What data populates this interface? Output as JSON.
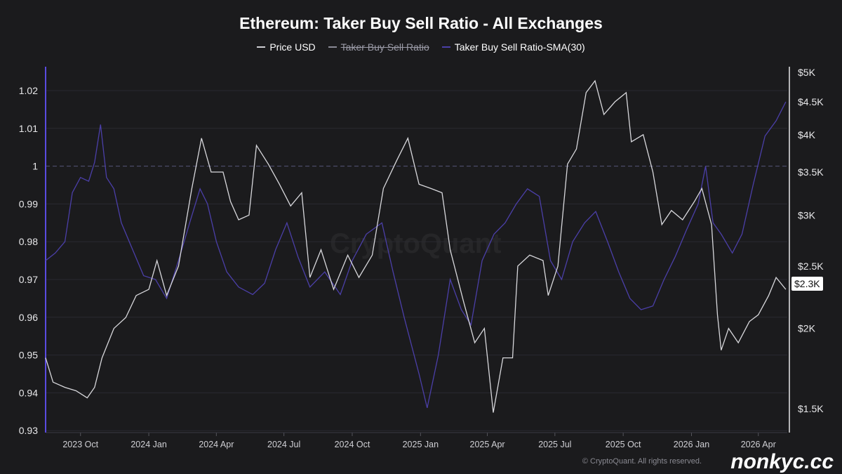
{
  "chart_data": {
    "type": "line",
    "title": "Ethereum: Taker Buy Sell Ratio - All Exchanges",
    "legend": [
      {
        "name": "Price USD",
        "color": "#cfcfd4",
        "hidden": false
      },
      {
        "name": "Taker Buy Sell Ratio",
        "color": "#8a8a96",
        "hidden": true
      },
      {
        "name": "Taker Buy Sell Ratio-SMA(30)",
        "color": "#4b3fa8",
        "hidden": false
      }
    ],
    "legend_position": "top-center",
    "left_axis": {
      "ylim": [
        0.93,
        1.025
      ],
      "ticks": [
        "1.02",
        "1.01",
        "1",
        "0.99",
        "0.98",
        "0.97",
        "0.96",
        "0.95",
        "0.94",
        "0.93"
      ],
      "tick_values": [
        1.02,
        1.01,
        1,
        0.99,
        0.98,
        0.97,
        0.96,
        0.95,
        0.94,
        0.93
      ],
      "reference_line": 1
    },
    "right_axis": {
      "scale": "log",
      "ylim": [
        1400,
        5050
      ],
      "ticks": [
        "$5K",
        "$4.5K",
        "$4K",
        "$3.5K",
        "$3K",
        "$2.5K",
        "$2K",
        "$1.5K"
      ],
      "tick_values": [
        5000,
        4500,
        4000,
        3500,
        3000,
        2500,
        2000,
        1500
      ],
      "current_label": "$2.3K",
      "current_value": 2300
    },
    "x_axis": {
      "range": [
        "2023-08-15",
        "2026-05-10"
      ],
      "ticks": [
        "2023 Oct",
        "2024 Jan",
        "2024 Apr",
        "2024 Jul",
        "2024 Oct",
        "2025 Jan",
        "2025 Apr",
        "2025 Jul",
        "2025 Oct",
        "2026 Jan",
        "2026 Apr"
      ],
      "tick_dates": [
        "2023-10-01",
        "2024-01-01",
        "2024-04-01",
        "2024-07-01",
        "2024-10-01",
        "2025-01-01",
        "2025-04-01",
        "2025-07-01",
        "2025-10-01",
        "2026-01-01",
        "2026-04-01"
      ]
    },
    "grid": true,
    "series": [
      {
        "name": "Price USD",
        "axis": "right",
        "points": [
          [
            "2023-08-15",
            1800
          ],
          [
            "2023-08-25",
            1650
          ],
          [
            "2023-09-10",
            1620
          ],
          [
            "2023-09-25",
            1600
          ],
          [
            "2023-10-10",
            1560
          ],
          [
            "2023-10-20",
            1620
          ],
          [
            "2023-10-30",
            1800
          ],
          [
            "2023-11-15",
            2000
          ],
          [
            "2023-12-01",
            2080
          ],
          [
            "2023-12-15",
            2250
          ],
          [
            "2024-01-01",
            2300
          ],
          [
            "2024-01-12",
            2550
          ],
          [
            "2024-01-25",
            2250
          ],
          [
            "2024-02-10",
            2500
          ],
          [
            "2024-02-28",
            3300
          ],
          [
            "2024-03-12",
            3950
          ],
          [
            "2024-03-25",
            3500
          ],
          [
            "2024-04-10",
            3500
          ],
          [
            "2024-04-20",
            3150
          ],
          [
            "2024-05-01",
            2950
          ],
          [
            "2024-05-15",
            3000
          ],
          [
            "2024-05-25",
            3850
          ],
          [
            "2024-06-10",
            3600
          ],
          [
            "2024-06-25",
            3350
          ],
          [
            "2024-07-10",
            3100
          ],
          [
            "2024-07-25",
            3250
          ],
          [
            "2024-08-05",
            2400
          ],
          [
            "2024-08-20",
            2650
          ],
          [
            "2024-09-06",
            2300
          ],
          [
            "2024-09-25",
            2600
          ],
          [
            "2024-10-10",
            2400
          ],
          [
            "2024-10-28",
            2600
          ],
          [
            "2024-11-12",
            3300
          ],
          [
            "2024-11-30",
            3650
          ],
          [
            "2024-12-15",
            3950
          ],
          [
            "2024-12-30",
            3350
          ],
          [
            "2025-01-15",
            3300
          ],
          [
            "2025-01-30",
            3250
          ],
          [
            "2025-02-10",
            2650
          ],
          [
            "2025-02-28",
            2200
          ],
          [
            "2025-03-15",
            1900
          ],
          [
            "2025-03-28",
            2000
          ],
          [
            "2025-04-09",
            1480
          ],
          [
            "2025-04-22",
            1800
          ],
          [
            "2025-05-05",
            1800
          ],
          [
            "2025-05-12",
            2500
          ],
          [
            "2025-05-28",
            2600
          ],
          [
            "2025-06-15",
            2550
          ],
          [
            "2025-06-22",
            2250
          ],
          [
            "2025-07-05",
            2500
          ],
          [
            "2025-07-18",
            3600
          ],
          [
            "2025-07-30",
            3800
          ],
          [
            "2025-08-12",
            4650
          ],
          [
            "2025-08-24",
            4850
          ],
          [
            "2025-09-05",
            4300
          ],
          [
            "2025-09-20",
            4500
          ],
          [
            "2025-10-05",
            4650
          ],
          [
            "2025-10-12",
            3900
          ],
          [
            "2025-10-28",
            4000
          ],
          [
            "2025-11-10",
            3500
          ],
          [
            "2025-11-22",
            2900
          ],
          [
            "2025-12-05",
            3050
          ],
          [
            "2025-12-20",
            2950
          ],
          [
            "2026-01-05",
            3150
          ],
          [
            "2026-01-15",
            3300
          ],
          [
            "2026-01-28",
            2900
          ],
          [
            "2026-02-05",
            2100
          ],
          [
            "2026-02-10",
            1850
          ],
          [
            "2026-02-20",
            2000
          ],
          [
            "2026-03-05",
            1900
          ],
          [
            "2026-03-20",
            2050
          ],
          [
            "2026-04-01",
            2100
          ],
          [
            "2026-04-15",
            2250
          ],
          [
            "2026-04-25",
            2400
          ],
          [
            "2026-05-08",
            2300
          ]
        ]
      },
      {
        "name": "Taker Buy Sell Ratio-SMA(30)",
        "axis": "left",
        "points": [
          [
            "2023-08-15",
            0.975
          ],
          [
            "2023-08-28",
            0.977
          ],
          [
            "2023-09-10",
            0.98
          ],
          [
            "2023-09-20",
            0.993
          ],
          [
            "2023-10-01",
            0.997
          ],
          [
            "2023-10-12",
            0.996
          ],
          [
            "2023-10-20",
            1.001
          ],
          [
            "2023-10-28",
            1.011
          ],
          [
            "2023-11-05",
            0.997
          ],
          [
            "2023-11-15",
            0.994
          ],
          [
            "2023-11-25",
            0.985
          ],
          [
            "2023-12-10",
            0.978
          ],
          [
            "2023-12-25",
            0.971
          ],
          [
            "2024-01-10",
            0.97
          ],
          [
            "2024-01-25",
            0.965
          ],
          [
            "2024-02-10",
            0.975
          ],
          [
            "2024-02-25",
            0.985
          ],
          [
            "2024-03-10",
            0.994
          ],
          [
            "2024-03-20",
            0.99
          ],
          [
            "2024-04-01",
            0.98
          ],
          [
            "2024-04-15",
            0.972
          ],
          [
            "2024-05-01",
            0.968
          ],
          [
            "2024-05-20",
            0.966
          ],
          [
            "2024-06-05",
            0.969
          ],
          [
            "2024-06-20",
            0.978
          ],
          [
            "2024-07-05",
            0.985
          ],
          [
            "2024-07-20",
            0.976
          ],
          [
            "2024-08-05",
            0.968
          ],
          [
            "2024-08-25",
            0.972
          ],
          [
            "2024-09-15",
            0.966
          ],
          [
            "2024-10-01",
            0.975
          ],
          [
            "2024-10-20",
            0.982
          ],
          [
            "2024-11-10",
            0.985
          ],
          [
            "2024-11-25",
            0.972
          ],
          [
            "2024-12-10",
            0.96
          ],
          [
            "2024-12-30",
            0.945
          ],
          [
            "2025-01-10",
            0.936
          ],
          [
            "2025-01-25",
            0.95
          ],
          [
            "2025-02-10",
            0.97
          ],
          [
            "2025-02-25",
            0.962
          ],
          [
            "2025-03-10",
            0.958
          ],
          [
            "2025-03-25",
            0.975
          ],
          [
            "2025-04-10",
            0.982
          ],
          [
            "2025-04-25",
            0.985
          ],
          [
            "2025-05-10",
            0.99
          ],
          [
            "2025-05-25",
            0.994
          ],
          [
            "2025-06-10",
            0.992
          ],
          [
            "2025-06-25",
            0.975
          ],
          [
            "2025-07-10",
            0.97
          ],
          [
            "2025-07-25",
            0.98
          ],
          [
            "2025-08-10",
            0.985
          ],
          [
            "2025-08-25",
            0.988
          ],
          [
            "2025-09-10",
            0.98
          ],
          [
            "2025-09-25",
            0.972
          ],
          [
            "2025-10-10",
            0.965
          ],
          [
            "2025-10-25",
            0.962
          ],
          [
            "2025-11-10",
            0.963
          ],
          [
            "2025-11-25",
            0.97
          ],
          [
            "2025-12-10",
            0.976
          ],
          [
            "2025-12-25",
            0.983
          ],
          [
            "2026-01-10",
            0.99
          ],
          [
            "2026-01-20",
            1.0
          ],
          [
            "2026-01-30",
            0.985
          ],
          [
            "2026-02-10",
            0.982
          ],
          [
            "2026-02-25",
            0.977
          ],
          [
            "2026-03-10",
            0.982
          ],
          [
            "2026-03-25",
            0.995
          ],
          [
            "2026-04-10",
            1.008
          ],
          [
            "2026-04-25",
            1.012
          ],
          [
            "2026-05-08",
            1.017
          ]
        ]
      }
    ]
  },
  "watermark": "CryptoQuant",
  "copyright": "© CryptoQuant. All rights reserved.",
  "brand": "nonkyc.cc"
}
